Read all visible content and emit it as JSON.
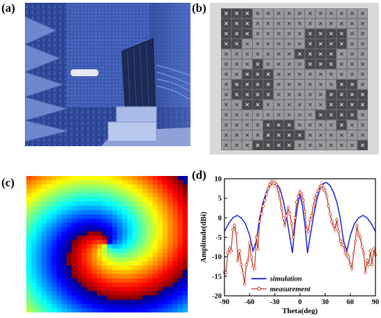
{
  "panels": {
    "a": "(a)",
    "b": "(b)",
    "c": "(c)",
    "d": "(d)"
  },
  "colors": {
    "simulation": "#1f2bd6",
    "measurement": "#b8331a",
    "measurement_fill": "#f2c8c8"
  },
  "chart_data": {
    "type": "line",
    "xlabel": "Theta(deg)",
    "ylabel": "Amplitude(dBi)",
    "xlim": [
      -90,
      90
    ],
    "ylim": [
      -20,
      10
    ],
    "xticks": [
      -90,
      -60,
      -30,
      0,
      30,
      60,
      90
    ],
    "yticks": [
      -20,
      -15,
      -10,
      -5,
      0,
      5,
      10
    ],
    "legend_position": "bottom-center",
    "series": [
      {
        "name": "simulation",
        "x": [
          -90,
          -85,
          -80,
          -75,
          -70,
          -65,
          -60,
          -56,
          -52,
          -48,
          -44,
          -40,
          -36,
          -32,
          -28,
          -24,
          -20,
          -16,
          -12,
          -9,
          -6,
          -3,
          0,
          3,
          6,
          9,
          12,
          16,
          20,
          24,
          28,
          32,
          36,
          40,
          44,
          48,
          52,
          56,
          60,
          65,
          70,
          75,
          80,
          85,
          90
        ],
        "y": [
          -3.5,
          -1.5,
          0,
          0.6,
          0,
          -1.5,
          -4.5,
          -8.5,
          -6,
          0,
          4,
          6.5,
          8.2,
          9,
          8.8,
          7.5,
          4.5,
          0.2,
          -5,
          -9,
          -2,
          3,
          6,
          3,
          -2,
          -9,
          -5,
          0.2,
          4.5,
          7.5,
          8.8,
          9,
          8.2,
          6.5,
          4,
          0,
          -6,
          -8.5,
          -4.5,
          -1.5,
          0,
          0.6,
          0,
          -1.5,
          -3.5
        ]
      },
      {
        "name": "measurement",
        "x": [
          -90,
          -88,
          -86,
          -84,
          -82,
          -80,
          -78,
          -76,
          -74,
          -72,
          -70,
          -68,
          -66,
          -64,
          -62,
          -60,
          -58,
          -56,
          -54,
          -52,
          -50,
          -48,
          -46,
          -44,
          -42,
          -40,
          -38,
          -36,
          -34,
          -32,
          -30,
          -28,
          -26,
          -24,
          -22,
          -20,
          -18,
          -16,
          -14,
          -12,
          -10,
          -8,
          -6,
          -4,
          -2,
          0,
          2,
          4,
          6,
          8,
          10,
          12,
          14,
          16,
          18,
          20,
          22,
          24,
          26,
          28,
          30,
          32,
          34,
          36,
          38,
          40,
          42,
          44,
          46,
          48,
          50,
          52,
          54,
          56,
          58,
          60,
          62,
          64,
          66,
          68,
          70,
          72,
          74,
          76,
          78,
          80,
          82,
          84,
          86,
          88,
          90
        ],
        "y": [
          -14,
          -14,
          -9,
          -8,
          -8.5,
          -3,
          -2,
          -4,
          -11,
          -8.5,
          -12,
          -14,
          -17,
          -12,
          -11,
          -6.5,
          -10,
          -12.5,
          -13,
          -5,
          -8,
          -1,
          1,
          3,
          4.5,
          6,
          7.5,
          8.5,
          9,
          9,
          8.8,
          8.5,
          7,
          5,
          2.5,
          0,
          -2,
          0.5,
          2.5,
          1,
          -1.5,
          -5,
          0,
          4,
          5.5,
          6.5,
          6,
          4.5,
          1.5,
          -3,
          -3.5,
          -0.5,
          0.5,
          3,
          5,
          6,
          7,
          8,
          8.2,
          7.5,
          7,
          5.5,
          3,
          1,
          -1,
          -2,
          -3,
          -0.5,
          -3.5,
          -6,
          -6.8,
          -7,
          -9,
          -9.5,
          -10,
          -12,
          -13,
          -9,
          -6,
          -2,
          -4.5,
          -5,
          -7.5,
          -9,
          -14,
          -11,
          -12,
          -8.5,
          -12,
          -8,
          -9.5
        ]
      }
    ]
  }
}
